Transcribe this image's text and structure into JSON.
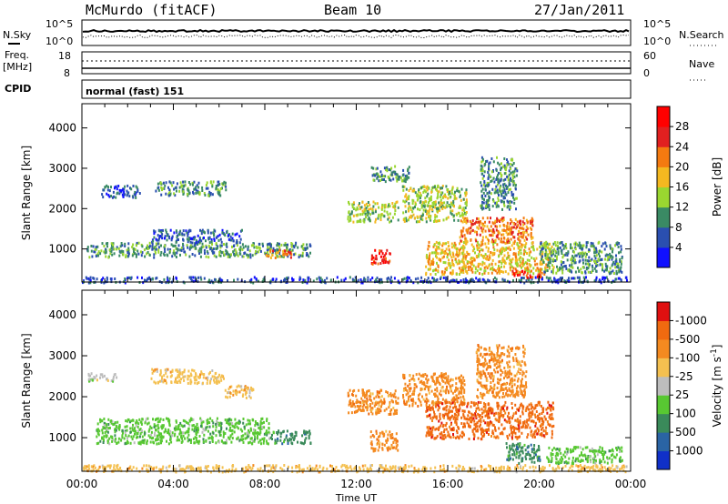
{
  "header": {
    "site": "McMurdo (fitACF)",
    "beam": "Beam 10",
    "date": "27/Jan/2011"
  },
  "mini_panels": {
    "nsky_label": "N.Sky",
    "nsearch_label": "N.Search",
    "freq_label_top": "Freq.",
    "freq_label_bottom": "[MHz]",
    "nave_label": "Nave",
    "cpid_label": "CPID",
    "cpid_value": "normal (fast) 151",
    "noise_left_ticks": [
      "10^5",
      "10^0"
    ],
    "noise_right_ticks": [
      "10^5",
      "10^0"
    ],
    "freq_left_ticks": [
      "18",
      "8"
    ],
    "nave_right_ticks": [
      "60",
      "0"
    ]
  },
  "chart_data": [
    {
      "type": "heatmap",
      "name": "Power",
      "ylabel": "Slant Range [km]",
      "xlabel": "",
      "ylim": [
        180,
        4600
      ],
      "yticks": [
        "1000",
        "2000",
        "3000",
        "4000"
      ],
      "ytick_values": [
        1000,
        2000,
        3000,
        4000
      ],
      "xlim_hours": [
        0,
        24
      ],
      "colorbar_label": "Power [dB]",
      "colorbar_ticks": [
        "4",
        "8",
        "12",
        "16",
        "20",
        "24",
        "28"
      ],
      "colorbar_colors": [
        "#1010ff",
        "#2a4fb0",
        "#3a8a64",
        "#9ad630",
        "#f4b820",
        "#f47a10",
        "#e12020",
        "#ff0000"
      ],
      "regions": [
        {
          "t0": 0.0,
          "t1": 23.9,
          "r0": 190,
          "r1": 330,
          "level": 1
        },
        {
          "t0": 0.2,
          "t1": 10.0,
          "r0": 820,
          "r1": 1180,
          "level": 2
        },
        {
          "t0": 3.0,
          "t1": 7.0,
          "r0": 1180,
          "r1": 1500,
          "level": 1
        },
        {
          "t0": 3.2,
          "t1": 6.3,
          "r0": 2350,
          "r1": 2700,
          "level": 2
        },
        {
          "t0": 0.8,
          "t1": 2.5,
          "r0": 2300,
          "r1": 2600,
          "level": 1
        },
        {
          "t0": 8.0,
          "t1": 9.2,
          "r0": 800,
          "r1": 1000,
          "level": 5
        },
        {
          "t0": 11.6,
          "t1": 13.8,
          "r0": 1700,
          "r1": 2200,
          "level": 3
        },
        {
          "t0": 12.6,
          "t1": 13.5,
          "r0": 650,
          "r1": 1000,
          "level": 6
        },
        {
          "t0": 14.0,
          "t1": 16.8,
          "r0": 1700,
          "r1": 2600,
          "level": 3
        },
        {
          "t0": 12.6,
          "t1": 14.3,
          "r0": 2700,
          "r1": 3100,
          "level": 2
        },
        {
          "t0": 15.0,
          "t1": 20.6,
          "r0": 400,
          "r1": 1200,
          "level": 4
        },
        {
          "t0": 16.5,
          "t1": 19.7,
          "r0": 1200,
          "r1": 1800,
          "level": 5
        },
        {
          "t0": 18.8,
          "t1": 20.2,
          "r0": 320,
          "r1": 500,
          "level": 6
        },
        {
          "t0": 17.4,
          "t1": 19.0,
          "r0": 2000,
          "r1": 3300,
          "level": 2
        },
        {
          "t0": 20.0,
          "t1": 23.6,
          "r0": 420,
          "r1": 1200,
          "level": 2
        }
      ]
    },
    {
      "type": "heatmap",
      "name": "Velocity",
      "ylabel": "Slant Range [km]",
      "xlabel": "Time UT",
      "ylim": [
        180,
        4600
      ],
      "yticks": [
        "1000",
        "2000",
        "3000",
        "4000"
      ],
      "ytick_values": [
        1000,
        2000,
        3000,
        4000
      ],
      "xlim_hours": [
        0,
        24
      ],
      "xticks": [
        "00:00",
        "04:00",
        "08:00",
        "12:00",
        "16:00",
        "20:00",
        "00:00"
      ],
      "xtick_hours": [
        0,
        4,
        8,
        12,
        16,
        20,
        24
      ],
      "colorbar_label": "Velocity [m s^-1]",
      "colorbar_ticks": [
        "1000",
        "500",
        "100",
        "25",
        "-25",
        "-100",
        "-500",
        "-1000"
      ],
      "colorbar_colors": [
        "#1030c8",
        "#2a64a4",
        "#3a8a5a",
        "#58c832",
        "#bdbdbd",
        "#f4c050",
        "#f48a20",
        "#f06a10",
        "#e01010"
      ],
      "regions": [
        {
          "t0": 0.0,
          "t1": 23.9,
          "r0": 190,
          "r1": 360,
          "color": 5
        },
        {
          "t0": 0.6,
          "t1": 8.2,
          "r0": 880,
          "r1": 1500,
          "color": 3
        },
        {
          "t0": 8.2,
          "t1": 10.0,
          "r0": 880,
          "r1": 1200,
          "color": 2
        },
        {
          "t0": 3.0,
          "t1": 6.2,
          "r0": 2350,
          "r1": 2700,
          "color": 5
        },
        {
          "t0": 6.2,
          "t1": 7.5,
          "r0": 2000,
          "r1": 2300,
          "color": 5
        },
        {
          "t0": 11.6,
          "t1": 13.8,
          "r0": 1600,
          "r1": 2200,
          "color": 6
        },
        {
          "t0": 12.6,
          "t1": 13.8,
          "r0": 700,
          "r1": 1200,
          "color": 6
        },
        {
          "t0": 14.0,
          "t1": 16.7,
          "r0": 1800,
          "r1": 2600,
          "color": 6
        },
        {
          "t0": 15.0,
          "t1": 20.6,
          "r0": 1000,
          "r1": 1900,
          "color": 7
        },
        {
          "t0": 17.2,
          "t1": 19.4,
          "r0": 2000,
          "r1": 3300,
          "color": 6
        },
        {
          "t0": 18.5,
          "t1": 20.0,
          "r0": 400,
          "r1": 900,
          "color": 2
        },
        {
          "t0": 20.3,
          "t1": 23.6,
          "r0": 400,
          "r1": 800,
          "color": 3
        },
        {
          "t0": 0.2,
          "t1": 1.5,
          "r0": 2400,
          "r1": 2600,
          "color": 4
        }
      ]
    }
  ]
}
